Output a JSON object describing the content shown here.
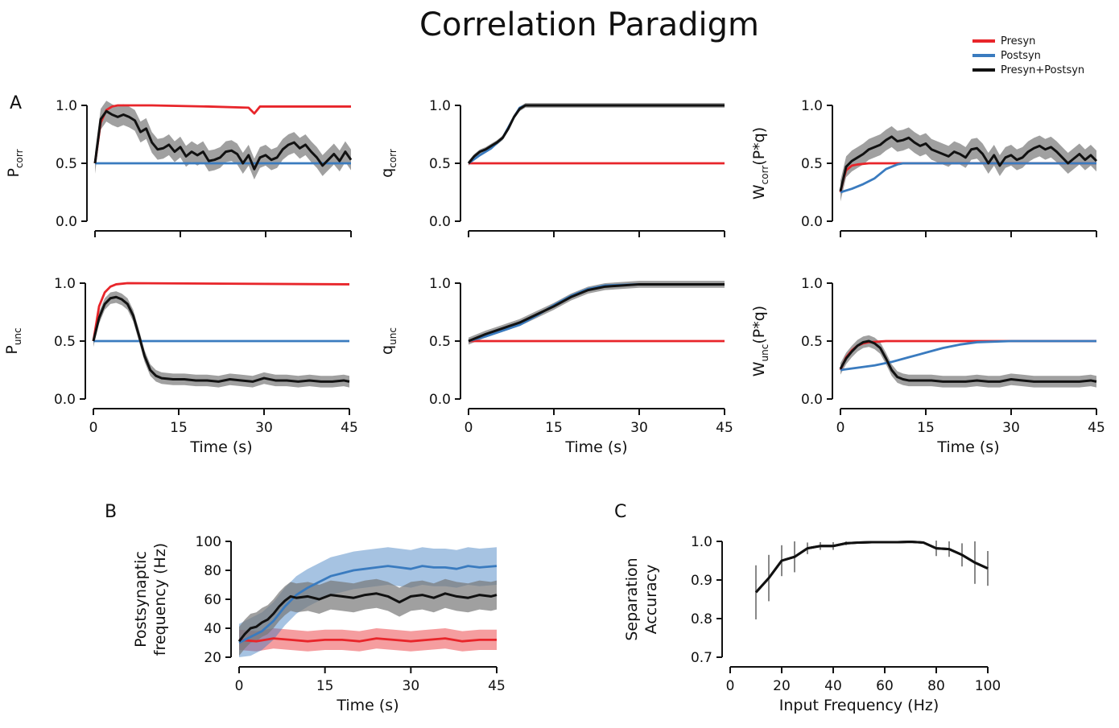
{
  "figure": {
    "title": "Correlation Paradigm",
    "panel_labels": {
      "A": "A",
      "B": "B",
      "C": "C"
    },
    "legend": [
      {
        "label": "Presyn",
        "color": "#e8252a"
      },
      {
        "label": "Postsyn",
        "color": "#3a7bbf"
      },
      {
        "label": "Presyn+Postsyn",
        "color": "#111111"
      }
    ],
    "colors": {
      "presyn": "#e8252a",
      "postsyn": "#3a7bbf",
      "both": "#111111",
      "band": "#777777",
      "errorbar": "#888888"
    }
  },
  "chart_data": [
    {
      "type": "line",
      "panel": "A1",
      "ylabel": "P",
      "ylabel_sub": "corr",
      "ylabel_suffix": "",
      "xlabel": "",
      "xlim": [
        0,
        45
      ],
      "ylim": [
        0,
        1
      ],
      "yticks": [
        "0.0",
        "0.5",
        "1.0"
      ],
      "xticks": [],
      "series": [
        {
          "name": "Presyn",
          "x": [
            0,
            1,
            2,
            3,
            4,
            6,
            10,
            20,
            27,
            28,
            29,
            35,
            45
          ],
          "y": [
            0.5,
            0.85,
            0.96,
            0.99,
            1.0,
            1.0,
            1.0,
            0.99,
            0.98,
            0.93,
            0.99,
            0.99,
            0.99
          ]
        },
        {
          "name": "Postsyn",
          "x": [
            0,
            45
          ],
          "y": [
            0.5,
            0.5
          ]
        },
        {
          "name": "Presyn+Postsyn",
          "x": [
            0,
            1,
            2,
            3,
            4,
            5,
            6,
            7,
            8,
            9,
            10,
            11,
            12,
            13,
            14,
            15,
            16,
            17,
            18,
            19,
            20,
            21,
            22,
            23,
            24,
            25,
            26,
            27,
            28,
            29,
            30,
            31,
            32,
            33,
            34,
            35,
            36,
            37,
            38,
            39,
            40,
            41,
            42,
            43,
            44,
            45
          ],
          "y": [
            0.5,
            0.88,
            0.95,
            0.92,
            0.9,
            0.92,
            0.9,
            0.87,
            0.77,
            0.8,
            0.68,
            0.62,
            0.63,
            0.66,
            0.6,
            0.64,
            0.56,
            0.6,
            0.57,
            0.6,
            0.52,
            0.53,
            0.55,
            0.6,
            0.61,
            0.58,
            0.5,
            0.57,
            0.45,
            0.55,
            0.57,
            0.53,
            0.55,
            0.62,
            0.66,
            0.68,
            0.63,
            0.66,
            0.6,
            0.55,
            0.48,
            0.53,
            0.58,
            0.52,
            0.6,
            0.53
          ],
          "band": 0.09
        }
      ]
    },
    {
      "type": "line",
      "panel": "A2",
      "ylabel": "q",
      "ylabel_sub": "corr",
      "ylabel_suffix": "",
      "xlabel": "",
      "xlim": [
        0,
        45
      ],
      "ylim": [
        0,
        1
      ],
      "yticks": [
        "0.0",
        "0.5",
        "1.0"
      ],
      "xticks": [],
      "series": [
        {
          "name": "Presyn",
          "x": [
            0,
            45
          ],
          "y": [
            0.5,
            0.5
          ]
        },
        {
          "name": "Postsyn",
          "x": [
            0,
            2,
            4,
            6,
            8,
            9,
            10,
            45
          ],
          "y": [
            0.5,
            0.57,
            0.63,
            0.72,
            0.9,
            0.98,
            1.0,
            1.0
          ]
        },
        {
          "name": "Presyn+Postsyn",
          "x": [
            0,
            1,
            2,
            3,
            4,
            5,
            6,
            7,
            8,
            9,
            10,
            45
          ],
          "y": [
            0.5,
            0.56,
            0.6,
            0.62,
            0.65,
            0.68,
            0.72,
            0.8,
            0.9,
            0.97,
            1.0,
            1.0
          ],
          "band": 0.02
        }
      ]
    },
    {
      "type": "line",
      "panel": "A3",
      "ylabel": "W",
      "ylabel_sub": "corr",
      "ylabel_suffix": "(P*q)",
      "xlabel": "",
      "xlim": [
        0,
        45
      ],
      "ylim": [
        0,
        1
      ],
      "yticks": [
        "0.0",
        "0.5",
        "1.0"
      ],
      "xticks": [],
      "series": [
        {
          "name": "Presyn",
          "x": [
            0,
            0.5,
            1,
            2,
            3,
            5,
            10,
            45
          ],
          "y": [
            0.25,
            0.36,
            0.44,
            0.48,
            0.49,
            0.5,
            0.5,
            0.5
          ]
        },
        {
          "name": "Postsyn",
          "x": [
            0,
            2,
            4,
            6,
            8,
            10,
            11,
            45
          ],
          "y": [
            0.25,
            0.28,
            0.32,
            0.37,
            0.45,
            0.49,
            0.5,
            0.5
          ]
        },
        {
          "name": "Presyn+Postsyn",
          "x": [
            0,
            1,
            2,
            3,
            4,
            5,
            6,
            7,
            8,
            9,
            10,
            11,
            12,
            13,
            14,
            15,
            16,
            17,
            18,
            19,
            20,
            21,
            22,
            23,
            24,
            25,
            26,
            27,
            28,
            29,
            30,
            31,
            32,
            33,
            34,
            35,
            36,
            37,
            38,
            39,
            40,
            41,
            42,
            43,
            44,
            45
          ],
          "y": [
            0.26,
            0.47,
            0.52,
            0.55,
            0.58,
            0.62,
            0.64,
            0.66,
            0.7,
            0.73,
            0.69,
            0.7,
            0.72,
            0.68,
            0.65,
            0.67,
            0.62,
            0.6,
            0.58,
            0.56,
            0.6,
            0.58,
            0.55,
            0.62,
            0.63,
            0.58,
            0.5,
            0.57,
            0.48,
            0.55,
            0.57,
            0.53,
            0.55,
            0.6,
            0.63,
            0.65,
            0.62,
            0.64,
            0.6,
            0.55,
            0.5,
            0.54,
            0.58,
            0.53,
            0.57,
            0.52
          ],
          "band": 0.09
        }
      ]
    },
    {
      "type": "line",
      "panel": "A4",
      "ylabel": "P",
      "ylabel_sub": "unc",
      "ylabel_suffix": "",
      "xlabel": "Time (s)",
      "xlim": [
        0,
        45
      ],
      "ylim": [
        0,
        1
      ],
      "yticks": [
        "0.0",
        "0.5",
        "1.0"
      ],
      "xticks": [
        "0",
        "15",
        "30",
        "45"
      ],
      "series": [
        {
          "name": "Presyn",
          "x": [
            0,
            1,
            2,
            3,
            4,
            6,
            45
          ],
          "y": [
            0.5,
            0.8,
            0.92,
            0.97,
            0.99,
            1.0,
            0.99
          ]
        },
        {
          "name": "Postsyn",
          "x": [
            0,
            45
          ],
          "y": [
            0.5,
            0.5
          ]
        },
        {
          "name": "Presyn+Postsyn",
          "x": [
            0,
            1,
            2,
            3,
            4,
            5,
            6,
            7,
            8,
            9,
            10,
            11,
            12,
            14,
            16,
            18,
            20,
            22,
            24,
            26,
            28,
            30,
            32,
            34,
            36,
            38,
            40,
            42,
            44,
            45
          ],
          "y": [
            0.5,
            0.7,
            0.82,
            0.87,
            0.88,
            0.86,
            0.82,
            0.72,
            0.55,
            0.37,
            0.25,
            0.2,
            0.18,
            0.17,
            0.17,
            0.16,
            0.16,
            0.15,
            0.17,
            0.16,
            0.15,
            0.18,
            0.16,
            0.16,
            0.15,
            0.16,
            0.15,
            0.15,
            0.16,
            0.15
          ],
          "band": 0.05
        }
      ]
    },
    {
      "type": "line",
      "panel": "A5",
      "ylabel": "q",
      "ylabel_sub": "unc",
      "ylabel_suffix": "",
      "xlabel": "Time (s)",
      "xlim": [
        0,
        45
      ],
      "ylim": [
        0,
        1
      ],
      "yticks": [
        "0.0",
        "0.5",
        "1.0"
      ],
      "xticks": [
        "0",
        "15",
        "30",
        "45"
      ],
      "series": [
        {
          "name": "Presyn",
          "x": [
            0,
            45
          ],
          "y": [
            0.5,
            0.5
          ]
        },
        {
          "name": "Postsyn",
          "x": [
            0,
            3,
            6,
            9,
            12,
            15,
            18,
            21,
            24,
            30,
            45
          ],
          "y": [
            0.5,
            0.54,
            0.59,
            0.64,
            0.72,
            0.81,
            0.89,
            0.95,
            0.98,
            0.99,
            0.99
          ]
        },
        {
          "name": "Presyn+Postsyn",
          "x": [
            0,
            3,
            6,
            9,
            12,
            15,
            18,
            21,
            24,
            30,
            45
          ],
          "y": [
            0.5,
            0.56,
            0.61,
            0.66,
            0.73,
            0.8,
            0.88,
            0.94,
            0.97,
            0.99,
            0.99
          ],
          "band": 0.03
        }
      ]
    },
    {
      "type": "line",
      "panel": "A6",
      "ylabel": "W",
      "ylabel_sub": "unc",
      "ylabel_suffix": "(P*q)",
      "xlabel": "Time (s)",
      "xlim": [
        0,
        45
      ],
      "ylim": [
        0,
        1
      ],
      "yticks": [
        "0.0",
        "0.5",
        "1.0"
      ],
      "xticks": [
        "0",
        "15",
        "30",
        "45"
      ],
      "series": [
        {
          "name": "Presyn",
          "x": [
            0,
            1,
            2,
            3,
            4,
            5,
            8,
            45
          ],
          "y": [
            0.25,
            0.36,
            0.42,
            0.46,
            0.48,
            0.49,
            0.5,
            0.5
          ]
        },
        {
          "name": "Postsyn",
          "x": [
            0,
            3,
            6,
            9,
            12,
            15,
            18,
            21,
            24,
            30,
            45
          ],
          "y": [
            0.25,
            0.27,
            0.29,
            0.32,
            0.36,
            0.4,
            0.44,
            0.47,
            0.49,
            0.5,
            0.5
          ]
        },
        {
          "name": "Presyn+Postsyn",
          "x": [
            0,
            1,
            2,
            3,
            4,
            5,
            6,
            7,
            8,
            9,
            10,
            11,
            12,
            14,
            16,
            18,
            20,
            22,
            24,
            26,
            28,
            30,
            32,
            34,
            36,
            38,
            40,
            42,
            44,
            45
          ],
          "y": [
            0.26,
            0.35,
            0.41,
            0.46,
            0.49,
            0.5,
            0.48,
            0.44,
            0.35,
            0.25,
            0.19,
            0.17,
            0.16,
            0.16,
            0.16,
            0.15,
            0.15,
            0.15,
            0.16,
            0.15,
            0.15,
            0.17,
            0.16,
            0.15,
            0.15,
            0.15,
            0.15,
            0.15,
            0.16,
            0.15
          ],
          "band": 0.05
        }
      ]
    },
    {
      "type": "line",
      "panel": "B",
      "ylabel": "Postsynaptic frequency (Hz)",
      "ylabel_sub": "",
      "ylabel_suffix": "",
      "xlabel": "Time (s)",
      "xlim": [
        0,
        45
      ],
      "ylim": [
        20,
        100
      ],
      "yticks": [
        "20",
        "40",
        "60",
        "80",
        "100"
      ],
      "xticks": [
        "0",
        "15",
        "30",
        "45"
      ],
      "series": [
        {
          "name": "Presyn",
          "x": [
            0,
            3,
            6,
            9,
            12,
            15,
            18,
            21,
            24,
            27,
            30,
            33,
            36,
            39,
            42,
            45
          ],
          "y": [
            32,
            31,
            33,
            32,
            31,
            32,
            32,
            31,
            33,
            32,
            31,
            32,
            33,
            31,
            32,
            32
          ],
          "band": 7
        },
        {
          "name": "Postsyn",
          "x": [
            0,
            2,
            4,
            6,
            8,
            10,
            12,
            14,
            16,
            18,
            20,
            22,
            24,
            26,
            28,
            30,
            32,
            34,
            36,
            38,
            40,
            42,
            45
          ],
          "y": [
            30,
            34,
            38,
            45,
            55,
            63,
            68,
            72,
            76,
            78,
            80,
            81,
            82,
            83,
            82,
            81,
            83,
            82,
            82,
            81,
            83,
            82,
            83
          ],
          "band": 13
        },
        {
          "name": "Presyn+Postsyn",
          "x": [
            0,
            1,
            2,
            3,
            4,
            5,
            6,
            7,
            8,
            9,
            10,
            12,
            14,
            16,
            18,
            20,
            22,
            24,
            26,
            28,
            30,
            32,
            34,
            36,
            38,
            40,
            42,
            44,
            45
          ],
          "y": [
            31,
            36,
            40,
            41,
            44,
            46,
            50,
            55,
            59,
            62,
            61,
            62,
            60,
            63,
            62,
            61,
            63,
            64,
            62,
            58,
            62,
            63,
            61,
            64,
            62,
            61,
            63,
            62,
            63
          ],
          "band": 10
        }
      ]
    },
    {
      "type": "line",
      "panel": "C",
      "ylabel": "Separation Accuracy",
      "ylabel_sub": "",
      "ylabel_suffix": "",
      "xlabel": "Input Frequency (Hz)",
      "xlim": [
        0,
        100
      ],
      "ylim": [
        0.7,
        1.0
      ],
      "yticks": [
        "0.7",
        "0.8",
        "0.9",
        "1.0"
      ],
      "xticks": [
        "0",
        "20",
        "40",
        "60",
        "80",
        "100"
      ],
      "series": [
        {
          "name": "Presyn+Postsyn",
          "x": [
            10,
            15,
            20,
            25,
            30,
            35,
            40,
            45,
            50,
            55,
            60,
            65,
            70,
            75,
            80,
            85,
            90,
            95,
            100
          ],
          "y": [
            0.868,
            0.905,
            0.95,
            0.96,
            0.982,
            0.988,
            0.988,
            0.995,
            0.997,
            0.998,
            0.998,
            0.998,
            0.999,
            0.997,
            0.982,
            0.98,
            0.965,
            0.945,
            0.93
          ],
          "err": [
            0.07,
            0.06,
            0.04,
            0.04,
            0.015,
            0.01,
            0.01,
            0.005,
            0.003,
            0.002,
            0.002,
            0.002,
            0.002,
            0.003,
            0.02,
            0.02,
            0.03,
            0.055,
            0.045
          ]
        }
      ]
    }
  ]
}
